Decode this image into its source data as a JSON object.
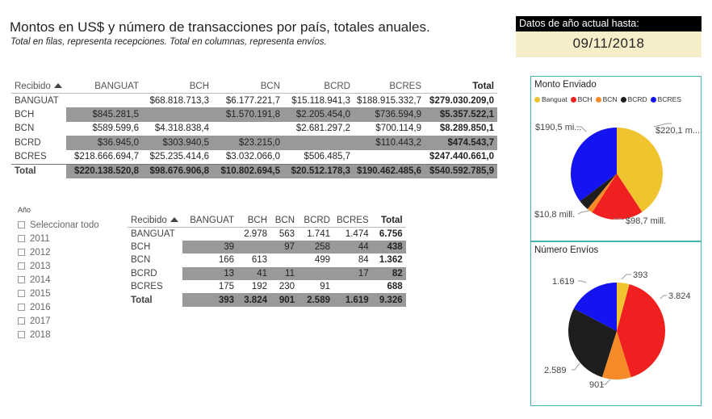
{
  "header": {
    "title": "Montos en US$ y número de transacciones por país, totales anuales.",
    "subtitle": "Total en filas, representa recepciones. Total en columnas, representa envíos."
  },
  "date_card": {
    "label": "Datos de año actual hasta:",
    "value": "09/11/2018"
  },
  "matrix_amounts": {
    "corner": "Recibido",
    "columns": [
      "BANGUAT",
      "BCH",
      "BCN",
      "BCRD",
      "BCRES",
      "Total"
    ],
    "rows": [
      {
        "label": "BANGUAT",
        "cells": [
          "",
          "$68.818.713,3",
          "$6.177.221,7",
          "$15.118.941,3",
          "$188.915.332,7",
          "$279.030.209,0"
        ]
      },
      {
        "label": "BCH",
        "cells": [
          "$845.281,5",
          "",
          "$1.570.191,8",
          "$2.205.454,0",
          "$736.594,9",
          "$5.357.522,1"
        ]
      },
      {
        "label": "BCN",
        "cells": [
          "$589.599,6",
          "$4.318.838,4",
          "",
          "$2.681.297,2",
          "$700.114,9",
          "$8.289.850,1"
        ]
      },
      {
        "label": "BCRD",
        "cells": [
          "$36.945,0",
          "$303.940,5",
          "$23.215,0",
          "",
          "$110.443,2",
          "$474.543,7"
        ]
      },
      {
        "label": "BCRES",
        "cells": [
          "$218.666.694,7",
          "$25.235.414,6",
          "$3.032.066,0",
          "$506.485,7",
          "",
          "$247.440.661,0"
        ]
      }
    ],
    "total_row": {
      "label": "Total",
      "cells": [
        "$220.138.520,8",
        "$98.676.906,8",
        "$10.802.694,5",
        "$20.512.178,3",
        "$190.462.485,6",
        "$540.592.785,9"
      ]
    }
  },
  "matrix_counts": {
    "corner": "Recibido",
    "columns": [
      "BANGUAT",
      "BCH",
      "BCN",
      "BCRD",
      "BCRES",
      "Total"
    ],
    "rows": [
      {
        "label": "BANGUAT",
        "cells": [
          "",
          "2.978",
          "563",
          "1.741",
          "1.474",
          "6.756"
        ]
      },
      {
        "label": "BCH",
        "cells": [
          "39",
          "",
          "97",
          "258",
          "44",
          "438"
        ]
      },
      {
        "label": "BCN",
        "cells": [
          "166",
          "613",
          "",
          "499",
          "84",
          "1.362"
        ]
      },
      {
        "label": "BCRD",
        "cells": [
          "13",
          "41",
          "11",
          "",
          "17",
          "82"
        ]
      },
      {
        "label": "BCRES",
        "cells": [
          "175",
          "192",
          "230",
          "91",
          "",
          "688"
        ]
      }
    ],
    "total_row": {
      "label": "Total",
      "cells": [
        "393",
        "3.824",
        "901",
        "2.589",
        "1.619",
        "9.326"
      ]
    }
  },
  "slicer": {
    "label": "Año",
    "items": [
      "Seleccionar todo",
      "2011",
      "2012",
      "2013",
      "2014",
      "2015",
      "2016",
      "2017",
      "2018"
    ]
  },
  "pie_amounts": {
    "title": "Monto Enviado",
    "legend": [
      {
        "name": "Banguat",
        "color": "#f0c42f"
      },
      {
        "name": "BCH",
        "color": "#f02020"
      },
      {
        "name": "BCN",
        "color": "#f58a28"
      },
      {
        "name": "BCRD",
        "color": "#1e1e1e"
      },
      {
        "name": "BCRES",
        "color": "#1414f0"
      }
    ],
    "labels": {
      "banguat": "$220,1 m...",
      "bch": "$98,7 mill.",
      "bcn": "$10,8 mill.",
      "bcres": "$190,5 mi..."
    }
  },
  "pie_counts": {
    "title": "Número Envíos",
    "labels": {
      "banguat": "393",
      "bch": "3.824",
      "bcn": "901",
      "bcrd": "2.589",
      "bcres": "1.619"
    }
  },
  "chart_data": [
    {
      "type": "pie",
      "title": "Monto Enviado",
      "categories": [
        "Banguat",
        "BCH",
        "BCN",
        "BCRD",
        "BCRES"
      ],
      "values": [
        220138520.8,
        98676906.8,
        10802694.5,
        20512178.3,
        190462485.6
      ],
      "colors": [
        "#f0c42f",
        "#f02020",
        "#f58a28",
        "#1e1e1e",
        "#1414f0"
      ]
    },
    {
      "type": "pie",
      "title": "Número Envíos",
      "categories": [
        "Banguat",
        "BCH",
        "BCN",
        "BCRD",
        "BCRES"
      ],
      "values": [
        393,
        3824,
        901,
        2589,
        1619
      ],
      "colors": [
        "#f0c42f",
        "#f02020",
        "#f58a28",
        "#1e1e1e",
        "#1414f0"
      ]
    }
  ]
}
